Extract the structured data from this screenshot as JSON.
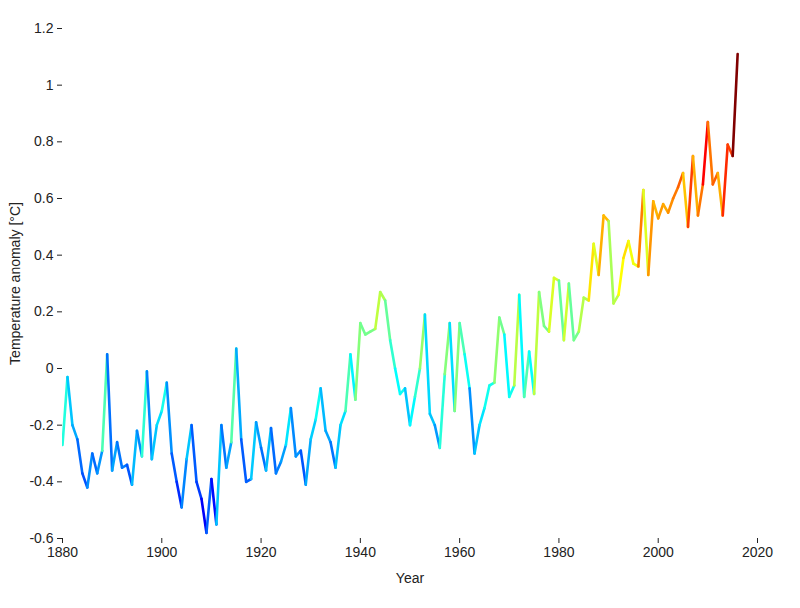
{
  "chart_data": {
    "type": "line",
    "x_label": "Year",
    "y_label": "Temperature anomaly [°C]",
    "color": "jet",
    "x": [
      1880,
      1881,
      1882,
      1883,
      1884,
      1885,
      1886,
      1887,
      1888,
      1889,
      1890,
      1891,
      1892,
      1893,
      1894,
      1895,
      1896,
      1897,
      1898,
      1899,
      1900,
      1901,
      1902,
      1903,
      1904,
      1905,
      1906,
      1907,
      1908,
      1909,
      1910,
      1911,
      1912,
      1913,
      1914,
      1915,
      1916,
      1917,
      1918,
      1919,
      1920,
      1921,
      1922,
      1923,
      1924,
      1925,
      1926,
      1927,
      1928,
      1929,
      1930,
      1931,
      1932,
      1933,
      1934,
      1935,
      1936,
      1937,
      1938,
      1939,
      1940,
      1941,
      1942,
      1943,
      1944,
      1945,
      1946,
      1947,
      1948,
      1949,
      1950,
      1951,
      1952,
      1953,
      1954,
      1955,
      1956,
      1957,
      1958,
      1959,
      1960,
      1961,
      1962,
      1963,
      1964,
      1965,
      1966,
      1967,
      1968,
      1969,
      1970,
      1971,
      1972,
      1973,
      1974,
      1975,
      1976,
      1977,
      1978,
      1979,
      1980,
      1981,
      1982,
      1983,
      1984,
      1985,
      1986,
      1987,
      1988,
      1989,
      1990,
      1991,
      1992,
      1993,
      1994,
      1995,
      1996,
      1997,
      1998,
      1999,
      2000,
      2001,
      2002,
      2003,
      2004,
      2005,
      2006,
      2007,
      2008,
      2009,
      2010,
      2011,
      2012,
      2013,
      2014,
      2015,
      2016
    ],
    "values": [
      -0.27,
      -0.03,
      -0.2,
      -0.25,
      -0.37,
      -0.42,
      -0.3,
      -0.37,
      -0.29,
      0.05,
      -0.36,
      -0.26,
      -0.35,
      -0.34,
      -0.41,
      -0.22,
      -0.31,
      -0.01,
      -0.32,
      -0.2,
      -0.15,
      -0.05,
      -0.3,
      -0.4,
      -0.49,
      -0.32,
      -0.2,
      -0.4,
      -0.46,
      -0.58,
      -0.39,
      -0.55,
      -0.2,
      -0.35,
      -0.26,
      0.07,
      -0.25,
      -0.4,
      -0.39,
      -0.19,
      -0.28,
      -0.36,
      -0.21,
      -0.37,
      -0.33,
      -0.27,
      -0.14,
      -0.31,
      -0.29,
      -0.41,
      -0.25,
      -0.18,
      -0.07,
      -0.22,
      -0.26,
      -0.35,
      -0.2,
      -0.15,
      0.05,
      -0.11,
      0.16,
      0.12,
      0.13,
      0.14,
      0.27,
      0.24,
      0.1,
      0.0,
      -0.09,
      -0.07,
      -0.2,
      -0.1,
      0.0,
      0.19,
      -0.16,
      -0.2,
      -0.28,
      -0.02,
      0.16,
      -0.15,
      0.16,
      0.05,
      -0.07,
      -0.3,
      -0.2,
      -0.14,
      -0.06,
      -0.05,
      0.18,
      0.12,
      -0.1,
      -0.06,
      0.26,
      -0.1,
      0.06,
      -0.09,
      0.27,
      0.15,
      0.13,
      0.32,
      0.31,
      0.1,
      0.3,
      0.1,
      0.13,
      0.25,
      0.24,
      0.44,
      0.33,
      0.54,
      0.52,
      0.23,
      0.26,
      0.39,
      0.45,
      0.37,
      0.36,
      0.63,
      0.33,
      0.59,
      0.53,
      0.58,
      0.55,
      0.6,
      0.64,
      0.69,
      0.5,
      0.75,
      0.54,
      0.65,
      0.87,
      0.65,
      0.69,
      0.54,
      0.79,
      0.75,
      1.11
    ],
    "xlim": [
      1880,
      2020
    ],
    "xticks": [
      1880,
      1900,
      1920,
      1940,
      1960,
      1980,
      2000,
      2020
    ],
    "ylim": [
      -0.6,
      1.2
    ],
    "yticks": [
      -0.6,
      -0.4,
      -0.2,
      0,
      0.2,
      0.4,
      0.6,
      0.8,
      1,
      1.2
    ]
  }
}
